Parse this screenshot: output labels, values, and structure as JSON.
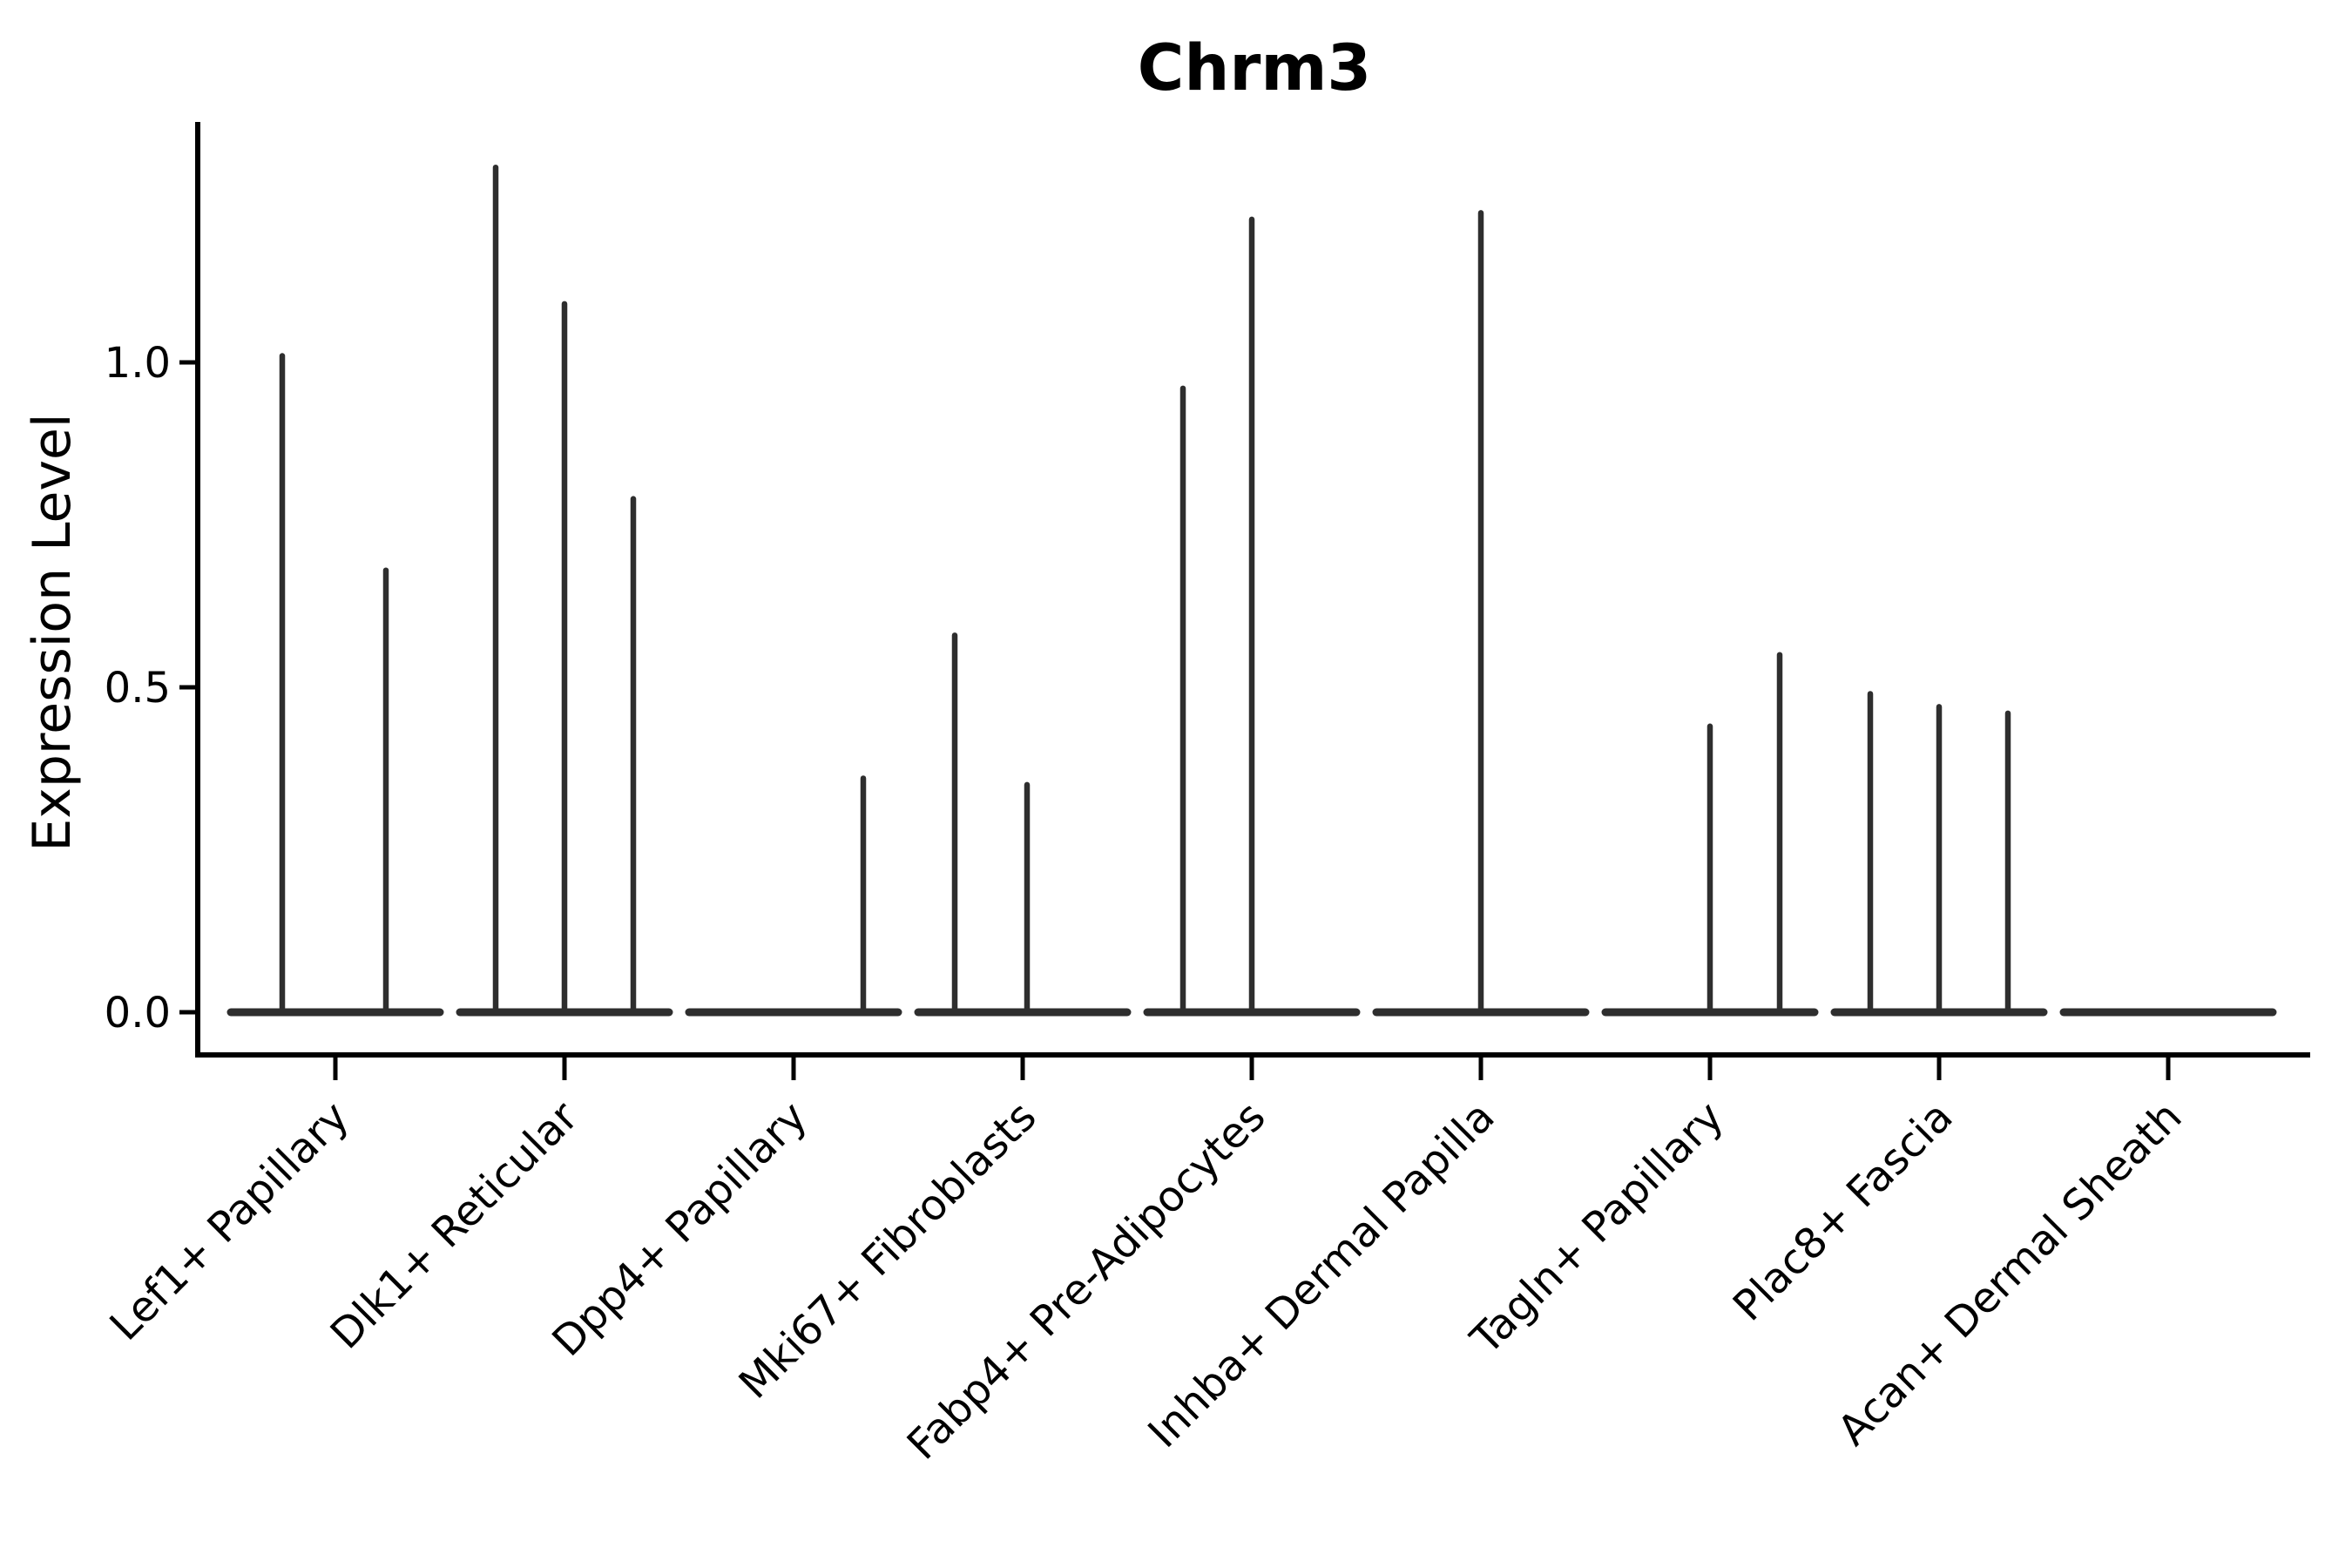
{
  "colors": {
    "background": "#ffffff",
    "violin_stroke": "#2e2e2e",
    "axis": "#000000",
    "text": "#000000"
  },
  "chart_data": {
    "type": "violin",
    "title": "Chrm3",
    "xlabel": "",
    "ylabel": "Expression Level",
    "ylim": [
      0,
      1.37
    ],
    "grid": false,
    "legend": null,
    "yticks": [
      {
        "value": 0.0,
        "label": "0.0"
      },
      {
        "value": 0.5,
        "label": "0.5"
      },
      {
        "value": 1.0,
        "label": "1.0"
      }
    ],
    "categories": [
      "Lef1+ Papillary",
      "Dlk1+ Reticular",
      "Dpp4+ Papillary",
      "Mki67+ Fibroblasts",
      "Fabp4+ Pre-Adipocytes",
      "Inhba+ Dermal Papilla",
      "Tagln+ Papillary",
      "Plac8+ Fascia",
      "Acan+ Dermal Sheath"
    ],
    "groups": [
      {
        "category": "Lef1+ Papillary",
        "baseline_value": 0,
        "spikes": [
          {
            "offset": -61,
            "max": 1.01
          },
          {
            "offset": 58,
            "max": 0.68
          }
        ]
      },
      {
        "category": "Dlk1+ Reticular",
        "baseline_value": 0,
        "spikes": [
          {
            "offset": -79,
            "max": 1.3
          },
          {
            "offset": 0,
            "max": 1.09
          },
          {
            "offset": 79,
            "max": 0.79
          }
        ]
      },
      {
        "category": "Dpp4+ Papillary",
        "baseline_value": 0,
        "spikes": [
          {
            "offset": 80,
            "max": 0.36
          }
        ]
      },
      {
        "category": "Mki67+ Fibroblasts",
        "baseline_value": 0,
        "spikes": [
          {
            "offset": -78,
            "max": 0.58
          },
          {
            "offset": 5,
            "max": 0.35
          }
        ]
      },
      {
        "category": "Fabp4+ Pre-Adipocytes",
        "baseline_value": 0,
        "spikes": [
          {
            "offset": -79,
            "max": 0.96
          },
          {
            "offset": 0,
            "max": 1.22
          }
        ]
      },
      {
        "category": "Inhba+ Dermal Papilla",
        "baseline_value": 0,
        "spikes": [
          {
            "offset": 0,
            "max": 1.23
          }
        ]
      },
      {
        "category": "Tagln+ Papillary",
        "baseline_value": 0,
        "spikes": [
          {
            "offset": 0,
            "max": 0.44
          },
          {
            "offset": 80,
            "max": 0.55
          }
        ]
      },
      {
        "category": "Plac8+ Fascia",
        "baseline_value": 0,
        "spikes": [
          {
            "offset": -79,
            "max": 0.49
          },
          {
            "offset": 0,
            "max": 0.47
          },
          {
            "offset": 79,
            "max": 0.46
          }
        ]
      },
      {
        "category": "Acan+ Dermal Sheath",
        "baseline_value": 0,
        "spikes": []
      }
    ]
  }
}
